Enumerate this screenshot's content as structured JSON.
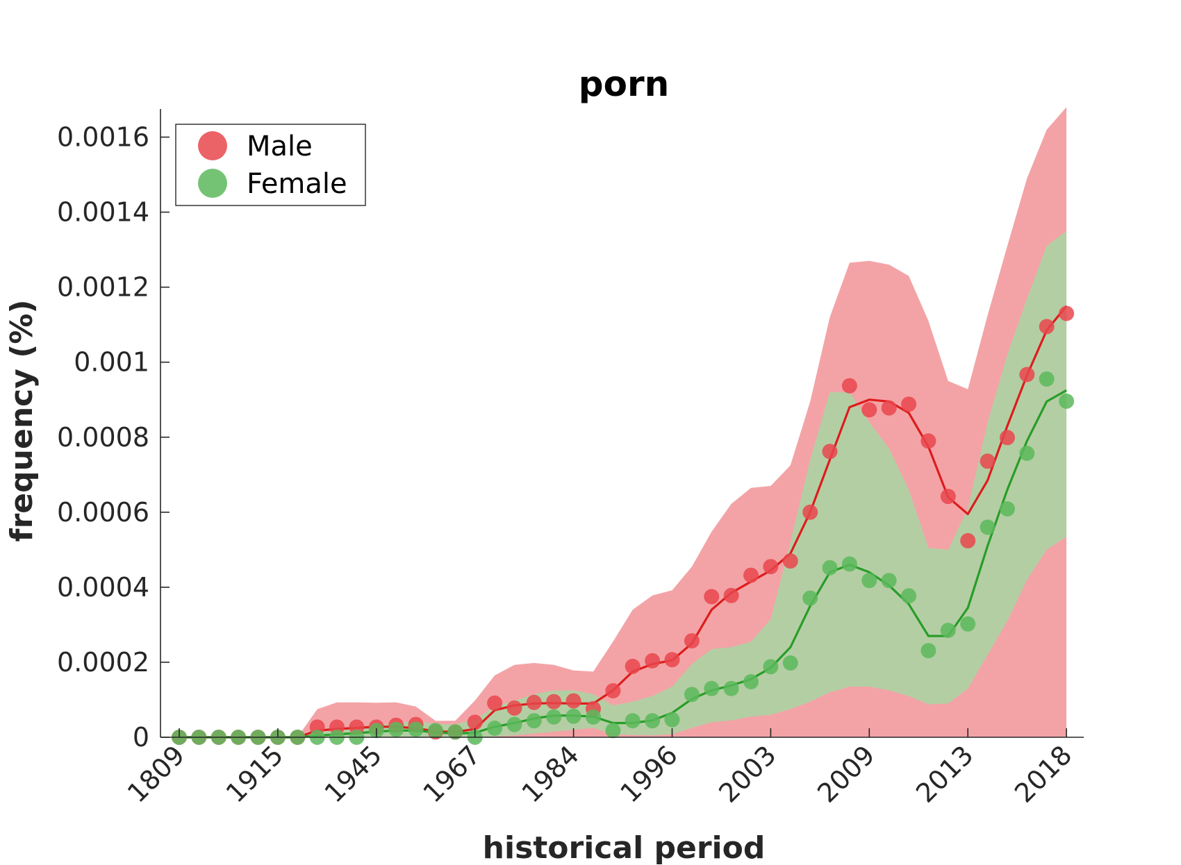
{
  "chart_data": {
    "type": "scatter",
    "title": "porn",
    "xlabel": "historical period",
    "ylabel": "frequency (%)",
    "x_tick_labels": [
      "1809",
      "1915",
      "1945",
      "1967",
      "1984",
      "1996",
      "2003",
      "2009",
      "2013",
      "2018"
    ],
    "y_tick_labels": [
      "0",
      "0.0002",
      "0.0004",
      "0.0006",
      "0.0008",
      "0.001",
      "0.0012",
      "0.0014",
      "0.0016"
    ],
    "y_ticks": [
      0,
      0.0002,
      0.0004,
      0.0006,
      0.0008,
      0.001,
      0.0012,
      0.0014,
      0.0016
    ],
    "ylim": [
      0,
      0.001675
    ],
    "n_points": 46,
    "legend": {
      "position": "top-left",
      "entries": [
        "Male",
        "Female"
      ]
    },
    "series": [
      {
        "name": "Male",
        "color": "#e8474c",
        "line_color": "#dd1c1c",
        "band_color": "#f08c90",
        "points": [
          0,
          0,
          0,
          0,
          0,
          0,
          0,
          2.7e-05,
          2.7e-05,
          2.7e-05,
          2.7e-05,
          3.2e-05,
          3.4e-05,
          1.4e-05,
          1.4e-05,
          4e-05,
          9.1e-05,
          7.8e-05,
          9.3e-05,
          9.5e-05,
          9.7e-05,
          7.6e-05,
          0.000124,
          0.000189,
          0.000204,
          0.000207,
          0.000257,
          0.000375,
          0.000378,
          0.000432,
          0.000455,
          0.00047,
          0.0006,
          0.000762,
          0.000937,
          0.000873,
          0.000878,
          0.000888,
          0.00079,
          0.000642,
          0.000524,
          0.000736,
          0.000799,
          0.000967,
          0.001095,
          0.00113
        ],
        "trend": [
          0,
          0,
          0,
          0,
          0,
          0,
          0,
          1.8e-05,
          2.2e-05,
          2.5e-05,
          2.8e-05,
          2.8e-05,
          2.4e-05,
          1.6e-05,
          1.4e-05,
          2.2e-05,
          7.2e-05,
          8.5e-05,
          9e-05,
          9.1e-05,
          9e-05,
          9e-05,
          0.000125,
          0.000175,
          0.000195,
          0.000205,
          0.00025,
          0.00034,
          0.000385,
          0.000415,
          0.000445,
          0.00049,
          0.0006,
          0.00074,
          0.00088,
          0.0009,
          0.000895,
          0.000865,
          0.000775,
          0.00064,
          0.000595,
          0.000685,
          0.00083,
          0.000965,
          0.001085,
          0.00115
        ],
        "band_upper": [
          0,
          0,
          0,
          0,
          0,
          0,
          0,
          7.5e-05,
          9.3e-05,
          9.3e-05,
          9.2e-05,
          9.3e-05,
          8.2e-05,
          4.4e-05,
          4.4e-05,
          9.8e-05,
          0.000165,
          0.000193,
          0.000198,
          0.000193,
          0.000178,
          0.000175,
          0.000255,
          0.00034,
          0.000378,
          0.000392,
          0.000455,
          0.000548,
          0.000622,
          0.000665,
          0.00067,
          0.000725,
          0.000895,
          0.00112,
          0.001265,
          0.00127,
          0.00126,
          0.00123,
          0.00111,
          0.00095,
          0.000928,
          0.001125,
          0.00131,
          0.00149,
          0.00162,
          0.00168
        ],
        "band_lower": [
          0,
          0,
          0,
          0,
          0,
          0,
          0,
          0,
          0,
          0,
          0,
          0,
          0,
          0,
          0,
          0,
          0,
          0,
          0,
          0,
          0,
          0,
          0,
          0,
          0,
          0,
          0,
          0,
          0,
          0,
          0,
          0,
          0,
          0,
          0,
          0,
          0,
          0,
          0,
          0,
          0,
          0,
          0,
          0,
          0,
          0
        ]
      },
      {
        "name": "Female",
        "color": "#5cb85c",
        "line_color": "#279d27",
        "band_color": "#a4d8a4",
        "points": [
          0,
          0,
          0,
          0,
          0,
          0,
          0,
          0,
          0,
          0,
          1.8e-05,
          2.1e-05,
          2.1e-05,
          1.8e-05,
          1.4e-05,
          0,
          2.4e-05,
          3.4e-05,
          4.4e-05,
          5.4e-05,
          5.6e-05,
          5.4e-05,
          1.8e-05,
          4.4e-05,
          4.4e-05,
          4.7e-05,
          0.000114,
          0.00013,
          0.00013,
          0.000148,
          0.000188,
          0.000198,
          0.000371,
          0.000452,
          0.000462,
          0.000418,
          0.000418,
          0.000377,
          0.000231,
          0.000285,
          0.000302,
          0.00056,
          0.000609,
          0.000757,
          0.000955,
          0.000896
        ],
        "trend": [
          0,
          0,
          0,
          0,
          0,
          0,
          0,
          4e-06,
          8e-06,
          1.1e-05,
          1.5e-05,
          1.8e-05,
          1.8e-05,
          1.3e-05,
          1e-05,
          1.2e-05,
          2.8e-05,
          3.8e-05,
          5e-05,
          5.8e-05,
          5.8e-05,
          5.5e-05,
          3.8e-05,
          3.8e-05,
          4.5e-05,
          6.5e-05,
          0.000102,
          0.000125,
          0.000138,
          0.000155,
          0.000185,
          0.00024,
          0.00035,
          0.00044,
          0.00046,
          0.00044,
          0.000405,
          0.000355,
          0.00027,
          0.00027,
          0.000345,
          0.00051,
          0.00066,
          0.00079,
          0.000895,
          0.000925
        ],
        "band_upper": [
          0,
          0,
          0,
          0,
          0,
          0,
          0,
          1.2e-05,
          2.2e-05,
          2.5e-05,
          3.2e-05,
          3.8e-05,
          4.5e-05,
          3.5e-05,
          3.5e-05,
          4.8e-05,
          8.2e-05,
          9.8e-05,
          0.000115,
          0.000125,
          0.000125,
          0.000115,
          8.5e-05,
          9.5e-05,
          0.00011,
          0.000135,
          0.000195,
          0.000235,
          0.00024,
          0.000255,
          0.000315,
          0.00052,
          0.00074,
          0.00092,
          0.00092,
          0.00084,
          0.00077,
          0.00066,
          0.000505,
          0.0005,
          0.00061,
          0.00084,
          0.00102,
          0.00117,
          0.00131,
          0.00135
        ],
        "band_lower": [
          0,
          0,
          0,
          0,
          0,
          0,
          0,
          0,
          0,
          0,
          0,
          0,
          0,
          0,
          0,
          0,
          2e-06,
          5e-06,
          1e-05,
          1.5e-05,
          2e-05,
          2.5e-05,
          8e-06,
          6e-06,
          5e-06,
          8e-06,
          2.5e-05,
          4e-05,
          4.5e-05,
          5.5e-05,
          6e-05,
          7.5e-05,
          9.5e-05,
          0.00012,
          0.000135,
          0.000135,
          0.000125,
          0.00011,
          8.8e-05,
          9e-05,
          0.00013,
          0.00022,
          0.00031,
          0.00042,
          0.0005,
          0.000535
        ]
      }
    ]
  }
}
